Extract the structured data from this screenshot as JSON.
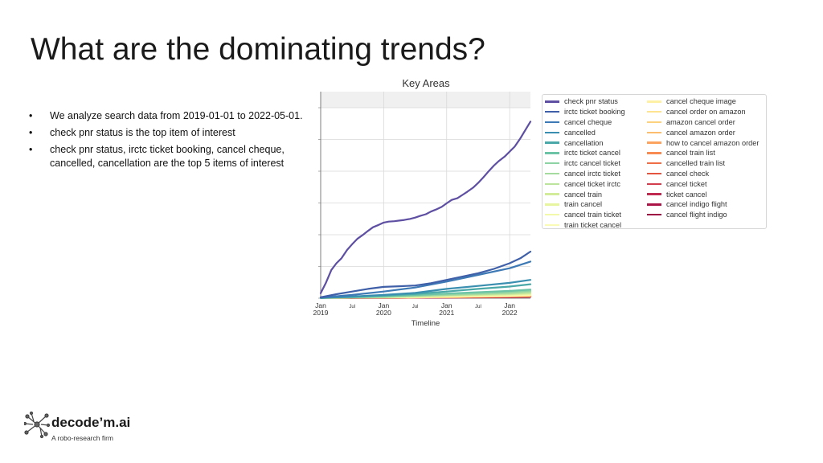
{
  "slide": {
    "title": "What are the dominating trends?",
    "bullets": [
      "We analyze search data from 2019-01-01 to 2022-05-01.",
      "check pnr status is the top item of interest",
      "check pnr status, irctc ticket booking, cancel cheque, cancelled, cancellation are the top 5 items of interest"
    ]
  },
  "logo": {
    "name": "decode’m.ai",
    "tagline": "A robo-research firm"
  },
  "chart_data": {
    "type": "line",
    "title": "Key Areas",
    "xlabel": "Timeline",
    "ylabel": "",
    "grid": true,
    "legend_position": "right",
    "x_ticks": [
      {
        "label": "Jan\n2019",
        "t": 2019.0
      },
      {
        "label": "Jul",
        "t": 2019.5
      },
      {
        "label": "Jan\n2020",
        "t": 2020.0
      },
      {
        "label": "Jul",
        "t": 2020.5
      },
      {
        "label": "Jan\n2021",
        "t": 2021.0
      },
      {
        "label": "Jul",
        "t": 2021.5
      },
      {
        "label": "Jan\n2022",
        "t": 2022.0
      }
    ],
    "xlim": [
      2019.0,
      2022.33
    ],
    "ylim": [
      0,
      6.2
    ],
    "series": [
      {
        "name": "check pnr status",
        "color": "#5e4fa2",
        "x": [
          2019.0,
          2019.08,
          2019.17,
          2019.25,
          2019.33,
          2019.42,
          2019.5,
          2019.58,
          2019.67,
          2019.75,
          2019.83,
          2019.92,
          2020.0,
          2020.08,
          2020.17,
          2020.25,
          2020.33,
          2020.42,
          2020.5,
          2020.58,
          2020.67,
          2020.75,
          2020.83,
          2020.92,
          2021.0,
          2021.08,
          2021.17,
          2021.25,
          2021.33,
          2021.42,
          2021.5,
          2021.58,
          2021.67,
          2021.75,
          2021.83,
          2021.92,
          2022.0,
          2022.08,
          2022.17,
          2022.25,
          2022.33
        ],
        "y": [
          0.15,
          0.45,
          0.85,
          1.05,
          1.2,
          1.45,
          1.62,
          1.78,
          1.9,
          2.02,
          2.13,
          2.2,
          2.27,
          2.3,
          2.31,
          2.33,
          2.35,
          2.38,
          2.42,
          2.47,
          2.52,
          2.6,
          2.66,
          2.74,
          2.85,
          2.95,
          3.0,
          3.1,
          3.2,
          3.32,
          3.46,
          3.62,
          3.82,
          3.98,
          4.12,
          4.25,
          4.4,
          4.55,
          4.8,
          5.05,
          5.3
        ]
      },
      {
        "name": "irctc ticket booking",
        "color": "#3f5fa8",
        "x": [
          2019.0,
          2019.25,
          2019.5,
          2019.75,
          2020.0,
          2020.25,
          2020.5,
          2020.75,
          2021.0,
          2021.25,
          2021.5,
          2021.75,
          2022.0,
          2022.17,
          2022.33
        ],
        "y": [
          0.03,
          0.12,
          0.2,
          0.28,
          0.34,
          0.36,
          0.38,
          0.45,
          0.55,
          0.65,
          0.75,
          0.88,
          1.05,
          1.2,
          1.4
        ]
      },
      {
        "name": "cancel cheque",
        "color": "#3d79b5",
        "x": [
          2019.0,
          2019.5,
          2020.0,
          2020.5,
          2021.0,
          2021.5,
          2022.0,
          2022.33
        ],
        "y": [
          0.02,
          0.1,
          0.2,
          0.32,
          0.5,
          0.7,
          0.9,
          1.1
        ]
      },
      {
        "name": "cancelled",
        "color": "#3a8fb0",
        "x": [
          2019.0,
          2019.5,
          2020.0,
          2020.5,
          2021.0,
          2021.5,
          2022.0,
          2022.33
        ],
        "y": [
          0.01,
          0.05,
          0.1,
          0.16,
          0.28,
          0.37,
          0.46,
          0.55
        ]
      },
      {
        "name": "cancellation",
        "color": "#4aa9a8",
        "x": [
          2019.0,
          2019.5,
          2020.0,
          2020.5,
          2021.0,
          2021.5,
          2022.0,
          2022.33
        ],
        "y": [
          0.01,
          0.04,
          0.08,
          0.13,
          0.2,
          0.28,
          0.35,
          0.42
        ]
      },
      {
        "name": "irctc ticket cancel",
        "color": "#6cc3a5",
        "x": [
          2019.0,
          2020.0,
          2021.0,
          2022.0,
          2022.33
        ],
        "y": [
          0.01,
          0.06,
          0.14,
          0.22,
          0.26
        ]
      },
      {
        "name": "irctc cancel ticket",
        "color": "#8dd3a3",
        "x": [
          2019.0,
          2020.0,
          2021.0,
          2022.0,
          2022.33
        ],
        "y": [
          0.01,
          0.05,
          0.12,
          0.19,
          0.23
        ]
      },
      {
        "name": "cancel irctc ticket",
        "color": "#a6db9f",
        "x": [
          2019.0,
          2020.0,
          2021.0,
          2022.0,
          2022.33
        ],
        "y": [
          0.01,
          0.04,
          0.1,
          0.16,
          0.2
        ]
      },
      {
        "name": "cancel ticket irctc",
        "color": "#bde49c",
        "x": [
          2019.0,
          2020.0,
          2021.0,
          2022.0,
          2022.33
        ],
        "y": [
          0.01,
          0.04,
          0.09,
          0.14,
          0.17
        ]
      },
      {
        "name": "cancel train",
        "color": "#d3ec9c",
        "x": [
          2019.0,
          2020.0,
          2021.0,
          2022.0,
          2022.33
        ],
        "y": [
          0.01,
          0.03,
          0.08,
          0.12,
          0.15
        ]
      },
      {
        "name": "train cancel",
        "color": "#e8f5a0",
        "x": [
          2019.0,
          2020.0,
          2021.0,
          2022.0,
          2022.33
        ],
        "y": [
          0.01,
          0.03,
          0.07,
          0.11,
          0.13
        ]
      },
      {
        "name": "cancel train ticket",
        "color": "#f2f9aa",
        "x": [
          2019.0,
          2020.0,
          2021.0,
          2022.0,
          2022.33
        ],
        "y": [
          0.01,
          0.03,
          0.06,
          0.1,
          0.12
        ]
      },
      {
        "name": "train ticket cancel",
        "color": "#fbfbb8",
        "x": [
          2019.0,
          2020.0,
          2021.0,
          2022.0,
          2022.33
        ],
        "y": [
          0.01,
          0.02,
          0.05,
          0.09,
          0.11
        ]
      },
      {
        "name": "cancel cheque image",
        "color": "#fef1a6",
        "x": [
          2019.0,
          2020.0,
          2021.0,
          2022.0,
          2022.33
        ],
        "y": [
          0.01,
          0.02,
          0.05,
          0.08,
          0.1
        ]
      },
      {
        "name": "cancel order on amazon",
        "color": "#fee491",
        "x": [
          2019.0,
          2020.0,
          2021.0,
          2022.0,
          2022.33
        ],
        "y": [
          0.01,
          0.02,
          0.04,
          0.07,
          0.09
        ]
      },
      {
        "name": "amazon cancel order",
        "color": "#fdd27e",
        "x": [
          2019.0,
          2020.0,
          2021.0,
          2022.0,
          2022.33
        ],
        "y": [
          0.01,
          0.02,
          0.04,
          0.07,
          0.08
        ]
      },
      {
        "name": "cancel amazon order",
        "color": "#fdbd6e",
        "x": [
          2019.0,
          2020.0,
          2021.0,
          2022.0,
          2022.33
        ],
        "y": [
          0.01,
          0.02,
          0.04,
          0.06,
          0.08
        ]
      },
      {
        "name": "how to cancel amazon order",
        "color": "#fca45f",
        "x": [
          2019.0,
          2020.0,
          2021.0,
          2022.0,
          2022.33
        ],
        "y": [
          0.01,
          0.02,
          0.03,
          0.06,
          0.07
        ]
      },
      {
        "name": "cancel train list",
        "color": "#f88b51",
        "x": [
          2019.0,
          2020.0,
          2021.0,
          2022.0,
          2022.33
        ],
        "y": [
          0.01,
          0.02,
          0.03,
          0.05,
          0.07
        ]
      },
      {
        "name": "cancelled train list",
        "color": "#f06e45",
        "x": [
          2019.0,
          2020.0,
          2021.0,
          2022.0,
          2022.33
        ],
        "y": [
          0.01,
          0.02,
          0.03,
          0.05,
          0.06
        ]
      },
      {
        "name": "cancel check",
        "color": "#e3553f",
        "x": [
          2019.0,
          2020.0,
          2021.0,
          2022.0,
          2022.33
        ],
        "y": [
          0.01,
          0.02,
          0.03,
          0.05,
          0.06
        ]
      },
      {
        "name": "cancel ticket",
        "color": "#d23e4e",
        "x": [
          2019.0,
          2020.0,
          2021.0,
          2022.0,
          2022.33
        ],
        "y": [
          0.01,
          0.02,
          0.03,
          0.04,
          0.05
        ]
      },
      {
        "name": "ticket cancel",
        "color": "#c12a50",
        "x": [
          2019.0,
          2020.0,
          2021.0,
          2022.0,
          2022.33
        ],
        "y": [
          0.01,
          0.01,
          0.03,
          0.04,
          0.05
        ]
      },
      {
        "name": "cancel indigo flight",
        "color": "#aa1447",
        "x": [
          2019.0,
          2020.0,
          2021.0,
          2022.0,
          2022.33
        ],
        "y": [
          0.01,
          0.01,
          0.02,
          0.04,
          0.05
        ]
      },
      {
        "name": "cancel flight indigo",
        "color": "#9e0142",
        "x": [
          2019.0,
          2020.0,
          2021.0,
          2022.0,
          2022.33
        ],
        "y": [
          0.01,
          0.01,
          0.02,
          0.03,
          0.04
        ]
      }
    ]
  }
}
